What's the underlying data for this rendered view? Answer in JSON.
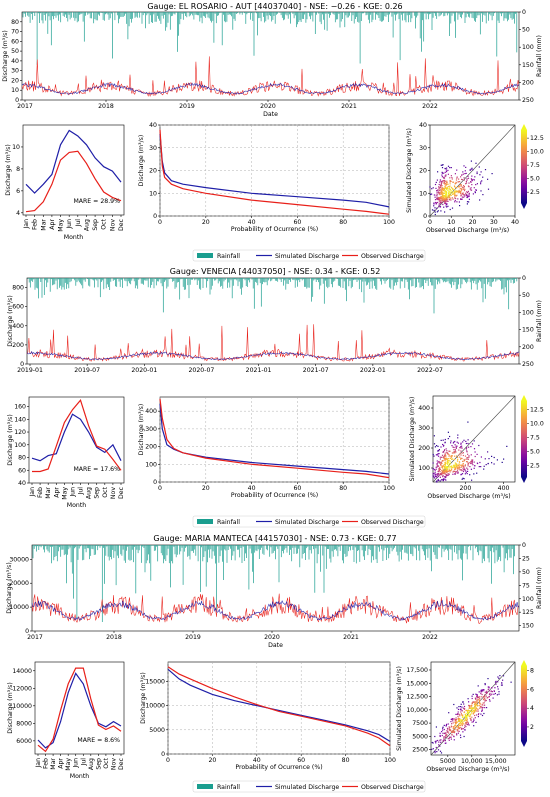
{
  "figure": {
    "legend_labels": {
      "rainfall": "Rainfall",
      "simulated": "Simulated Discharge",
      "observed": "Observed Discharge"
    },
    "colors": {
      "rainfall": "#1a9e8f",
      "simulated": "#1f1fa8",
      "observed": "#e8201a",
      "identity_line": "#444444"
    }
  },
  "chart_data": [
    {
      "panel": "el-rosario",
      "title": "Gauge: EL ROSARIO - AUT [44037040] - NSE: −0.26 - KGE: 0.26",
      "timeseries": {
        "type": "line",
        "xlabel": "Date",
        "ylabel": "Discharge (m³/s)",
        "y2label": "Rainfall (mm)",
        "x_tick_labels": [
          "2017",
          "2018",
          "2019",
          "2020",
          "2021",
          "2022"
        ],
        "x_range": [
          "2017-01-01",
          "2023-01-01"
        ],
        "y_ticks": [
          "0",
          "10",
          "20",
          "30",
          "40",
          "50",
          "60",
          "70",
          "80"
        ],
        "y_range": [
          0,
          90
        ],
        "y2_ticks": [
          "0",
          "50",
          "100",
          "150",
          "200",
          "250"
        ],
        "y2_range": [
          0,
          250
        ],
        "observed_peak": 45,
        "simulated_typical": 12
      },
      "monthly": {
        "type": "line",
        "xlabel": "Month",
        "ylabel": "Discharge (m³/s)",
        "categories": [
          "Jan",
          "Feb",
          "Mar",
          "Apr",
          "May",
          "Jun",
          "Jul",
          "Aug",
          "Sep",
          "Oct",
          "Nov",
          "Dec"
        ],
        "series": [
          {
            "name": "Simulated Discharge",
            "values": [
              6.6,
              5.8,
              6.6,
              7.5,
              10.2,
              11.5,
              11.0,
              10.2,
              9.0,
              8.2,
              7.8,
              6.8
            ]
          },
          {
            "name": "Observed Discharge",
            "values": [
              4.1,
              4.2,
              5.0,
              6.6,
              8.8,
              9.5,
              9.6,
              8.5,
              7.1,
              5.9,
              5.4,
              5.1
            ]
          }
        ],
        "y_ticks": [
          "4",
          "6",
          "8",
          "10"
        ],
        "ylim": [
          3.8,
          12
        ],
        "annotation": "MARE = 28.9%"
      },
      "fdc": {
        "type": "line",
        "xlabel": "Probability of Ocurrence (%)",
        "ylabel": "Discharge (m³/s)",
        "x_ticks": [
          "0",
          "20",
          "40",
          "60",
          "80",
          "100"
        ],
        "y_ticks": [
          "0",
          "10",
          "20",
          "30",
          "40"
        ],
        "ylim": [
          0,
          40
        ],
        "series": [
          {
            "name": "Simulated Discharge",
            "x": [
              0,
              1,
              2,
              5,
              10,
              20,
              40,
              60,
              80,
              90,
              100
            ],
            "y": [
              36,
              24,
              19,
              15.5,
              14,
              12.5,
              10,
              8.5,
              7,
              6,
              4
            ]
          },
          {
            "name": "Observed Discharge",
            "x": [
              0,
              1,
              2,
              5,
              10,
              20,
              40,
              60,
              80,
              90,
              100
            ],
            "y": [
              38,
              22,
              17,
              14,
              12,
              10,
              7,
              5,
              3,
              2,
              0.8
            ]
          }
        ]
      },
      "scatter": {
        "type": "scatter",
        "xlabel": "Observed Discharge (m³/s)",
        "ylabel": "Simulated Discharge (m³/s)",
        "x_ticks": [
          "0",
          "10",
          "20",
          "30",
          "40"
        ],
        "y_ticks": [
          "0",
          "10",
          "20",
          "30",
          "40"
        ],
        "lim": [
          0,
          40
        ],
        "colorbar_ticks": [
          "2.5",
          "5.0",
          "7.5",
          "10.0",
          "12.5"
        ],
        "cb_range": [
          0.5,
          14
        ],
        "center": [
          8,
          10
        ],
        "spread": [
          5,
          4
        ]
      }
    },
    {
      "panel": "venecia",
      "title": "Gauge: VENECIA [44037050] - NSE: 0.34 - KGE: 0.52",
      "timeseries": {
        "type": "line",
        "xlabel": "",
        "ylabel": "Discharge (m³/s)",
        "y2label": "Rainfall (mm)",
        "x_tick_labels": [
          "2019-01",
          "2019-07",
          "2020-01",
          "2020-07",
          "2021-01",
          "2021-07",
          "2022-01",
          "2022-07"
        ],
        "x_range": [
          "2019-01-01",
          "2022-12-31"
        ],
        "y_ticks": [
          "0",
          "200",
          "400",
          "600",
          "800"
        ],
        "y_range": [
          0,
          900
        ],
        "y2_ticks": [
          "0",
          "50",
          "100",
          "150",
          "200",
          "250"
        ],
        "y2_range": [
          0,
          250
        ],
        "observed_peak": 420,
        "simulated_typical": 90
      },
      "monthly": {
        "type": "line",
        "xlabel": "Month",
        "ylabel": "Discharge (m³/s)",
        "categories": [
          "Jan",
          "Feb",
          "Mar",
          "Apr",
          "May",
          "Jun",
          "Jul",
          "Aug",
          "Sep",
          "Oct",
          "Nov",
          "Dec"
        ],
        "series": [
          {
            "name": "Simulated Discharge",
            "values": [
              79,
              75,
              83,
              86,
              120,
              148,
              140,
              120,
              96,
              88,
              100,
              75
            ]
          },
          {
            "name": "Observed Discharge",
            "values": [
              58,
              58,
              62,
              98,
              135,
              155,
              170,
              130,
              98,
              93,
              77,
              60
            ]
          }
        ],
        "y_ticks": [
          "40",
          "60",
          "80",
          "100",
          "120",
          "140",
          "160"
        ],
        "ylim": [
          40,
          175
        ],
        "annotation": "MARE = 17.6%"
      },
      "fdc": {
        "type": "line",
        "xlabel": "Probability of Ocurrence (%)",
        "ylabel": "Discharge (m³/s)",
        "x_ticks": [
          "0",
          "20",
          "40",
          "60",
          "80",
          "100"
        ],
        "y_ticks": [
          "0",
          "100",
          "200",
          "300",
          "400"
        ],
        "ylim": [
          0,
          480
        ],
        "series": [
          {
            "name": "Simulated Discharge",
            "x": [
              0,
              1,
              3,
              6,
              10,
              20,
              40,
              60,
              80,
              90,
              100
            ],
            "y": [
              440,
              300,
              210,
              185,
              165,
              140,
              110,
              90,
              70,
              60,
              45
            ]
          },
          {
            "name": "Observed Discharge",
            "x": [
              0,
              1,
              3,
              6,
              10,
              20,
              40,
              60,
              80,
              90,
              100
            ],
            "y": [
              470,
              360,
              240,
              190,
              165,
              135,
              100,
              78,
              55,
              45,
              25
            ]
          }
        ]
      },
      "scatter": {
        "type": "scatter",
        "xlabel": "Observed Discharge (m³/s)",
        "ylabel": "Simulated Discharge (m³/s)",
        "x_ticks": [
          "200",
          "400"
        ],
        "y_ticks": [
          "100",
          "200",
          "300",
          "400"
        ],
        "lim": [
          30,
          460
        ],
        "colorbar_ticks": [
          "2.5",
          "5.0",
          "7.5",
          "10.0",
          "12.5"
        ],
        "cb_range": [
          0.5,
          14
        ],
        "center": [
          110,
          110
        ],
        "spread": [
          60,
          45
        ]
      }
    },
    {
      "panel": "maria-manteca",
      "title": "Gauge: MARIA MANTECA [44157030] - NSE: 0.73 - KGE: 0.77",
      "timeseries": {
        "type": "line",
        "xlabel": "Date",
        "ylabel": "Discharge (m³/s)",
        "y2label": "Rainfall (mm)",
        "x_tick_labels": [
          "2017",
          "2018",
          "2019",
          "2020",
          "2021",
          "2022"
        ],
        "x_range": [
          "2017-01-01",
          "2023-01-01"
        ],
        "y_ticks": [
          "0",
          "10000",
          "20000",
          "30000"
        ],
        "y_range": [
          0,
          36000
        ],
        "y2_ticks": [
          "0",
          "25",
          "50",
          "75",
          "100",
          "125",
          "150"
        ],
        "y2_range": [
          0,
          160
        ],
        "observed_peak": 15500,
        "simulated_typical": 9000
      },
      "monthly": {
        "type": "line",
        "xlabel": "Month",
        "ylabel": "Discharge (m³/s)",
        "categories": [
          "Jan",
          "Feb",
          "Mar",
          "Apr",
          "May",
          "Jun",
          "Jul",
          "Aug",
          "Sep",
          "Oct",
          "Nov",
          "Dec"
        ],
        "series": [
          {
            "name": "Simulated Discharge",
            "values": [
              6100,
              5200,
              5800,
              8200,
              11500,
              13700,
              12500,
              10000,
              8000,
              7600,
              8200,
              7700
            ]
          },
          {
            "name": "Observed Discharge",
            "values": [
              5500,
              4800,
              6200,
              9500,
              12500,
              14300,
              14300,
              10800,
              7800,
              7300,
              7700,
              7100
            ]
          }
        ],
        "y_ticks": [
          "6000",
          "8000",
          "10000",
          "12000",
          "14000"
        ],
        "ylim": [
          4500,
          15000
        ],
        "annotation": "MARE = 8.6%"
      },
      "fdc": {
        "type": "line",
        "xlabel": "Probability of Ocurrence (%)",
        "ylabel": "Discharge (m³/s)",
        "x_ticks": [
          "0",
          "20",
          "40",
          "60",
          "80",
          "100"
        ],
        "y_ticks": [
          "0",
          "5000",
          "10000",
          "15000"
        ],
        "ylim": [
          0,
          19000
        ],
        "series": [
          {
            "name": "Simulated Discharge",
            "x": [
              0,
              5,
              10,
              20,
              30,
              40,
              50,
              60,
              70,
              80,
              90,
              95,
              100
            ],
            "y": [
              17500,
              15500,
              14200,
              12300,
              11000,
              10000,
              9000,
              8000,
              7000,
              6000,
              4800,
              4000,
              2600
            ]
          },
          {
            "name": "Observed Discharge",
            "x": [
              0,
              5,
              10,
              20,
              30,
              40,
              50,
              60,
              70,
              80,
              90,
              95,
              100
            ],
            "y": [
              18000,
              16500,
              15500,
              13500,
              11800,
              10200,
              8800,
              7800,
              6800,
              5800,
              4300,
              3300,
              1700
            ]
          }
        ]
      },
      "scatter": {
        "type": "scatter",
        "xlabel": "Observed Discharge (m³/s)",
        "ylabel": "Simulated Discharge (m³/s)",
        "x_ticks": [
          "5000",
          "10,000",
          "15,000"
        ],
        "y_ticks": [
          "2500",
          "5000",
          "7500",
          "10,000",
          "12,500",
          "15,000",
          "17,500"
        ],
        "lim": [
          1500,
          19000
        ],
        "colorbar_ticks": [
          "2",
          "4",
          "6",
          "8"
        ],
        "cb_range": [
          0.5,
          8.5
        ],
        "center": [
          9000,
          9000
        ],
        "spread": [
          3500,
          3000
        ]
      }
    }
  ]
}
